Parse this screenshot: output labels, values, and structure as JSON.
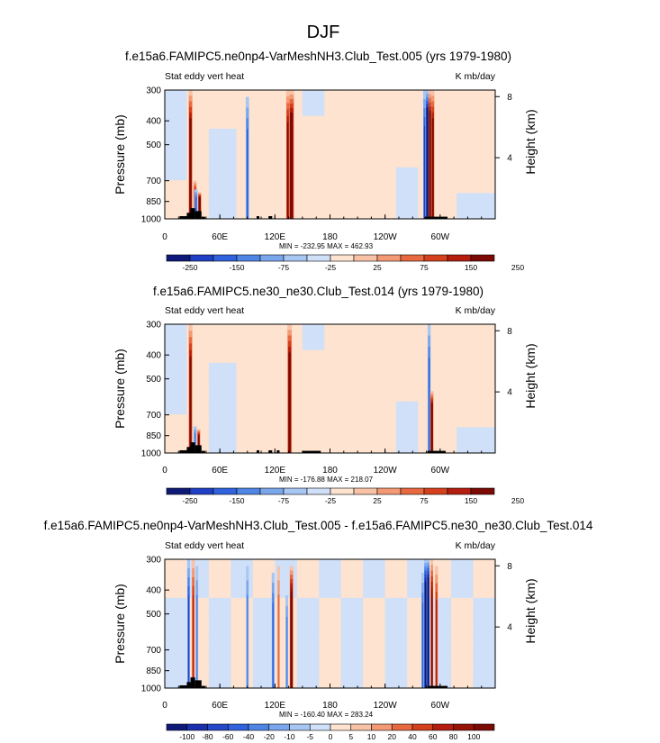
{
  "figure": {
    "title": "DJF"
  },
  "chart_data": [
    {
      "type": "heatmap",
      "title": "f.e15a6.FAMIPC5.ne0np4-VarMeshNH3.Club_Test.005 (yrs 1979-1980)",
      "left_label": "Stat eddy vert heat",
      "right_label": "K mb/day",
      "ylabel": "Pressure (mb)",
      "y2label": "Height (km)",
      "xticks": [
        "0",
        "60E",
        "120E",
        "180",
        "120W",
        "60W"
      ],
      "yticks": [
        "300",
        "400",
        "500",
        "700",
        "850",
        "1000"
      ],
      "y2ticks": [
        "8",
        "4"
      ],
      "minmax": "MIN = -232.95   MAX = 462.93",
      "colorbar_labels": [
        "-250",
        "-150",
        "-75",
        "-25",
        "25",
        "75",
        "150",
        "250"
      ],
      "colors": [
        "#0f1a78",
        "#1f3fc4",
        "#2f62dc",
        "#4f86e6",
        "#7aa6ec",
        "#a8c6f2",
        "#cfe0f8",
        "#fde3d0",
        "#f8c2a6",
        "#f39a74",
        "#e8683f",
        "#d43f1c",
        "#b51d0e",
        "#7c0a04"
      ],
      "features": [
        {
          "lon": 28,
          "p_top": 300,
          "peak": 8,
          "width": 2.5
        },
        {
          "lon": 33,
          "p_top": 700,
          "peak": 6,
          "width": 2
        },
        {
          "lon": 38,
          "p_top": 780,
          "peak": 10,
          "width": 2
        },
        {
          "lon": 34,
          "p_top": 760,
          "peak": -4,
          "width": 2
        },
        {
          "lon": 90,
          "p_top": 320,
          "peak": -4,
          "width": 2
        },
        {
          "lon": 138,
          "p_top": 300,
          "peak": 10,
          "width": 3.5
        },
        {
          "lon": 134,
          "p_top": 300,
          "peak": 7,
          "width": 2
        },
        {
          "lon": 286,
          "p_top": 300,
          "peak": -13,
          "width": 1.6
        },
        {
          "lon": 289,
          "p_top": 300,
          "peak": 11,
          "width": 1.8
        },
        {
          "lon": 292,
          "p_top": 300,
          "peak": 8,
          "width": 2
        },
        {
          "lon": 283,
          "p_top": 300,
          "peak": -5,
          "width": 1.6
        }
      ],
      "terrain": [
        {
          "lon0": 16,
          "lon1": 24,
          "p_top": 975
        },
        {
          "lon0": 24,
          "lon1": 28,
          "p_top": 945
        },
        {
          "lon0": 28,
          "lon1": 33,
          "p_top": 905
        },
        {
          "lon0": 33,
          "lon1": 40,
          "p_top": 930
        },
        {
          "lon0": 40,
          "lon1": 44,
          "p_top": 980
        },
        {
          "lon0": 100,
          "lon1": 103,
          "p_top": 975
        },
        {
          "lon0": 113,
          "lon1": 117,
          "p_top": 975
        },
        {
          "lon0": 283,
          "lon1": 308,
          "p_top": 980
        }
      ]
    },
    {
      "type": "heatmap",
      "title": "f.e15a6.FAMIPC5.ne30_ne30.Club_Test.014 (yrs 1979-1980)",
      "left_label": "Stat eddy vert heat",
      "right_label": "K mb/day",
      "ylabel": "Pressure (mb)",
      "y2label": "Height (km)",
      "xticks": [
        "0",
        "60E",
        "120E",
        "180",
        "120W",
        "60W"
      ],
      "yticks": [
        "300",
        "400",
        "500",
        "700",
        "850",
        "1000"
      ],
      "y2ticks": [
        "8",
        "4"
      ],
      "minmax": "MIN = -176.88   MAX = 218.07",
      "colorbar_labels": [
        "-250",
        "-150",
        "-75",
        "-25",
        "25",
        "75",
        "150",
        "250"
      ],
      "colors": [
        "#0f1a78",
        "#1f3fc4",
        "#2f62dc",
        "#4f86e6",
        "#7aa6ec",
        "#a8c6f2",
        "#cfe0f8",
        "#fde3d0",
        "#f8c2a6",
        "#f39a74",
        "#e8683f",
        "#d43f1c",
        "#b51d0e",
        "#7c0a04"
      ],
      "features": [
        {
          "lon": 28,
          "p_top": 300,
          "peak": 7,
          "width": 2.5
        },
        {
          "lon": 37,
          "p_top": 800,
          "peak": 7,
          "width": 2
        },
        {
          "lon": 33,
          "p_top": 780,
          "peak": -3,
          "width": 2
        },
        {
          "lon": 136,
          "p_top": 300,
          "peak": 8,
          "width": 3
        },
        {
          "lon": 288,
          "p_top": 300,
          "peak": -4,
          "width": 1.8
        },
        {
          "lon": 291,
          "p_top": 560,
          "peak": 9,
          "width": 2
        }
      ],
      "terrain": [
        {
          "lon0": 16,
          "lon1": 24,
          "p_top": 975
        },
        {
          "lon0": 24,
          "lon1": 28,
          "p_top": 945
        },
        {
          "lon0": 28,
          "lon1": 33,
          "p_top": 905
        },
        {
          "lon0": 33,
          "lon1": 40,
          "p_top": 930
        },
        {
          "lon0": 40,
          "lon1": 44,
          "p_top": 980
        },
        {
          "lon0": 100,
          "lon1": 103,
          "p_top": 975
        },
        {
          "lon0": 113,
          "lon1": 117,
          "p_top": 975
        },
        {
          "lon0": 122,
          "lon1": 125,
          "p_top": 975
        },
        {
          "lon0": 150,
          "lon1": 170,
          "p_top": 980
        },
        {
          "lon0": 286,
          "lon1": 306,
          "p_top": 980
        }
      ]
    },
    {
      "type": "heatmap",
      "title": "f.e15a6.FAMIPC5.ne0np4-VarMeshNH3.Club_Test.005 - f.e15a6.FAMIPC5.ne30_ne30.Club_Test.014",
      "left_label": "Stat eddy vert heat",
      "right_label": "K mb/day",
      "ylabel": "Pressure (mb)",
      "y2label": "Height (km)",
      "xticks": [
        "0",
        "60E",
        "120E",
        "180",
        "120W",
        "60W"
      ],
      "yticks": [
        "300",
        "400",
        "500",
        "700",
        "850",
        "1000"
      ],
      "y2ticks": [
        "8",
        "4"
      ],
      "minmax": "MIN = -160.40   MAX = 283.24",
      "colorbar_labels": [
        "-100",
        "-80",
        "-60",
        "-40",
        "-20",
        "-10",
        "-5",
        "0",
        "5",
        "10",
        "20",
        "40",
        "60",
        "80",
        "100"
      ],
      "colors": [
        "#0f1a78",
        "#1a2fae",
        "#2448c8",
        "#2f62dc",
        "#4f86e6",
        "#7aa6ec",
        "#a8c6f2",
        "#cfe0f8",
        "#fde3d0",
        "#f8c2a6",
        "#f39a74",
        "#e8683f",
        "#d43f1c",
        "#b51d0e",
        "#961305",
        "#7c0a04"
      ],
      "features": [
        {
          "lon": 26,
          "p_top": 300,
          "peak": -5,
          "width": 1.5
        },
        {
          "lon": 31,
          "p_top": 300,
          "peak": 5,
          "width": 1.8
        },
        {
          "lon": 35,
          "p_top": 320,
          "peak": -3,
          "width": 1.5
        },
        {
          "lon": 90,
          "p_top": 320,
          "peak": -3,
          "width": 1.5
        },
        {
          "lon": 118,
          "p_top": 340,
          "peak": -4,
          "width": 1.6
        },
        {
          "lon": 124,
          "p_top": 320,
          "peak": 3,
          "width": 1.6
        },
        {
          "lon": 138,
          "p_top": 320,
          "peak": 10,
          "width": 2.2
        },
        {
          "lon": 133,
          "p_top": 420,
          "peak": -3,
          "width": 1.5
        },
        {
          "lon": 284,
          "p_top": 300,
          "peak": -12,
          "width": 1.4
        },
        {
          "lon": 287,
          "p_top": 300,
          "peak": -15,
          "width": 1.4
        },
        {
          "lon": 291,
          "p_top": 300,
          "peak": 8,
          "width": 1.5
        },
        {
          "lon": 296,
          "p_top": 320,
          "peak": 5,
          "width": 1.8
        },
        {
          "lon": 281,
          "p_top": 340,
          "peak": -4,
          "width": 1.5
        }
      ],
      "terrain": [
        {
          "lon0": 16,
          "lon1": 24,
          "p_top": 975
        },
        {
          "lon0": 24,
          "lon1": 28,
          "p_top": 945
        },
        {
          "lon0": 28,
          "lon1": 33,
          "p_top": 905
        },
        {
          "lon0": 33,
          "lon1": 40,
          "p_top": 930
        },
        {
          "lon0": 40,
          "lon1": 44,
          "p_top": 980
        },
        {
          "lon0": 286,
          "lon1": 308,
          "p_top": 980
        }
      ]
    }
  ]
}
